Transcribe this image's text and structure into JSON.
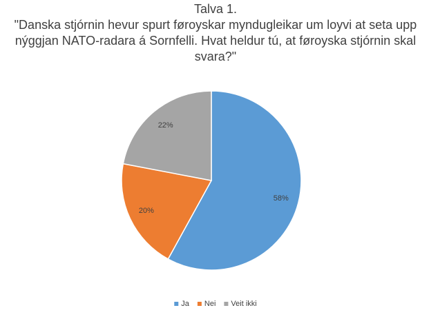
{
  "chart_data": {
    "type": "pie",
    "title": "Talva 1.",
    "subtitle": [
      "\"Danska stjórnin hevur spurt føroyskar myndugleikar um loyvi at seta upp",
      "nýggjan NATO-radara á Sornfelli. Hvat heldur tú, at føroyska stjórnin skal",
      "svara?\""
    ],
    "categories": [
      "Ja",
      "Nei",
      "Veit ikki"
    ],
    "values": [
      58,
      20,
      22
    ],
    "value_labels": [
      "58%",
      "20%",
      "22%"
    ],
    "colors": [
      "#5b9bd5",
      "#ed7d31",
      "#a5a5a5"
    ],
    "legend": "bottom"
  }
}
